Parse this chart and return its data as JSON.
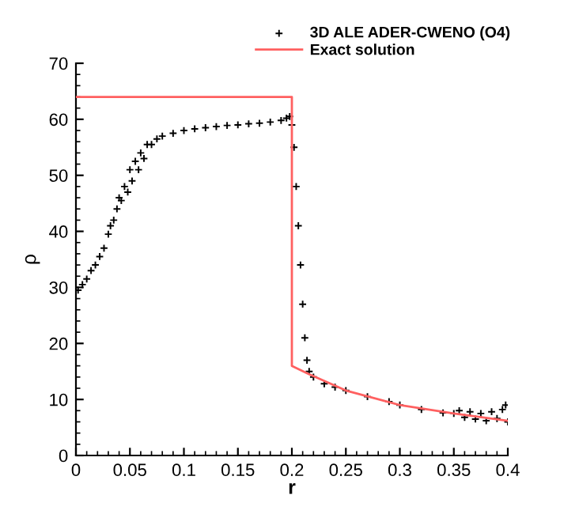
{
  "chart_data": {
    "type": "scatter",
    "xlabel": "r",
    "ylabel": "ρ",
    "xlim": [
      0,
      0.4
    ],
    "xticks": [
      0,
      0.05,
      0.1,
      0.15,
      0.2,
      0.25,
      0.3,
      0.35,
      0.4
    ],
    "ylim": [
      0,
      70
    ],
    "yticks": [
      0,
      10,
      20,
      30,
      40,
      50,
      60,
      70
    ],
    "legend": "top right",
    "grid": false,
    "series": [
      {
        "name": "3D ALE ADER-CWENO (O4)",
        "marker": "cross",
        "color": "#000000",
        "x": [
          0.002,
          0.006,
          0.01,
          0.014,
          0.018,
          0.022,
          0.026,
          0.03,
          0.032,
          0.035,
          0.038,
          0.04,
          0.042,
          0.045,
          0.048,
          0.05,
          0.052,
          0.055,
          0.058,
          0.06,
          0.063,
          0.066,
          0.07,
          0.075,
          0.08,
          0.09,
          0.1,
          0.11,
          0.12,
          0.13,
          0.14,
          0.15,
          0.16,
          0.17,
          0.18,
          0.19,
          0.195,
          0.198,
          0.2,
          0.202,
          0.204,
          0.206,
          0.208,
          0.21,
          0.212,
          0.214,
          0.216,
          0.22,
          0.23,
          0.24,
          0.25,
          0.27,
          0.29,
          0.3,
          0.32,
          0.34,
          0.35,
          0.355,
          0.36,
          0.365,
          0.37,
          0.375,
          0.38,
          0.385,
          0.39,
          0.395,
          0.398,
          0.4
        ],
        "values": [
          29.5,
          30.5,
          31.5,
          33,
          34,
          35.5,
          37,
          39.5,
          41,
          42,
          44,
          46,
          45.5,
          48,
          47,
          51,
          49,
          52.5,
          51,
          54,
          53,
          55.5,
          55.5,
          56.5,
          57,
          57.5,
          58,
          58.3,
          58.5,
          58.7,
          58.9,
          59,
          59.2,
          59.3,
          59.5,
          59.8,
          60.2,
          60.5,
          59,
          55,
          48,
          41,
          34,
          27,
          21,
          17,
          15,
          14,
          12.8,
          12.2,
          11.6,
          10.5,
          9.6,
          9,
          8.2,
          7.6,
          7.5,
          8,
          6.8,
          7.8,
          6.5,
          7.5,
          6.2,
          7.8,
          6.6,
          8.2,
          9,
          6
        ]
      },
      {
        "name": "Exact solution",
        "type": "line",
        "color": "#ff6060",
        "x": [
          0,
          0.2,
          0.2,
          0.216,
          0.25,
          0.3,
          0.35,
          0.4
        ],
        "values": [
          64,
          64,
          16,
          14.5,
          11.6,
          9,
          7.5,
          6.2
        ]
      }
    ]
  }
}
